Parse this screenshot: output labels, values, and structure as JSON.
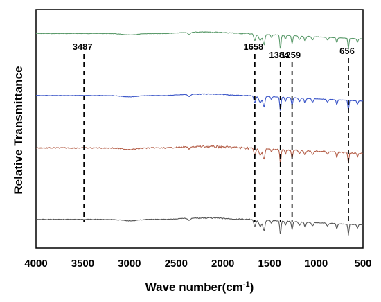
{
  "chart_data": {
    "type": "line",
    "title": "",
    "xlabel": "Wave number(cm",
    "xlabel_sup": "-1",
    "xlabel_close": ")",
    "ylabel": "Relative Transmittance",
    "xlim": [
      4000,
      500
    ],
    "x_reversed": true,
    "xticks": [
      "4000",
      "3500",
      "3000",
      "2500",
      "2000",
      "1500",
      "1000",
      "500"
    ],
    "grid": false,
    "legend": "none",
    "peaks": [
      {
        "label": "3487",
        "x": 3487
      },
      {
        "label": "1658",
        "x": 1658
      },
      {
        "label": "1384",
        "x": 1384
      },
      {
        "label": "1259",
        "x": 1259
      },
      {
        "label": "656",
        "x": 656
      }
    ],
    "series": [
      {
        "color": "#5a9a6a",
        "baseline": 0.9,
        "noise": 0.4
      },
      {
        "color": "#3a55c8",
        "baseline": 0.64,
        "noise": 0.35
      },
      {
        "color": "#b5604a",
        "baseline": 0.42,
        "noise": 1.1
      },
      {
        "color": "#555555",
        "baseline": 0.12,
        "noise": 0.55
      }
    ]
  }
}
